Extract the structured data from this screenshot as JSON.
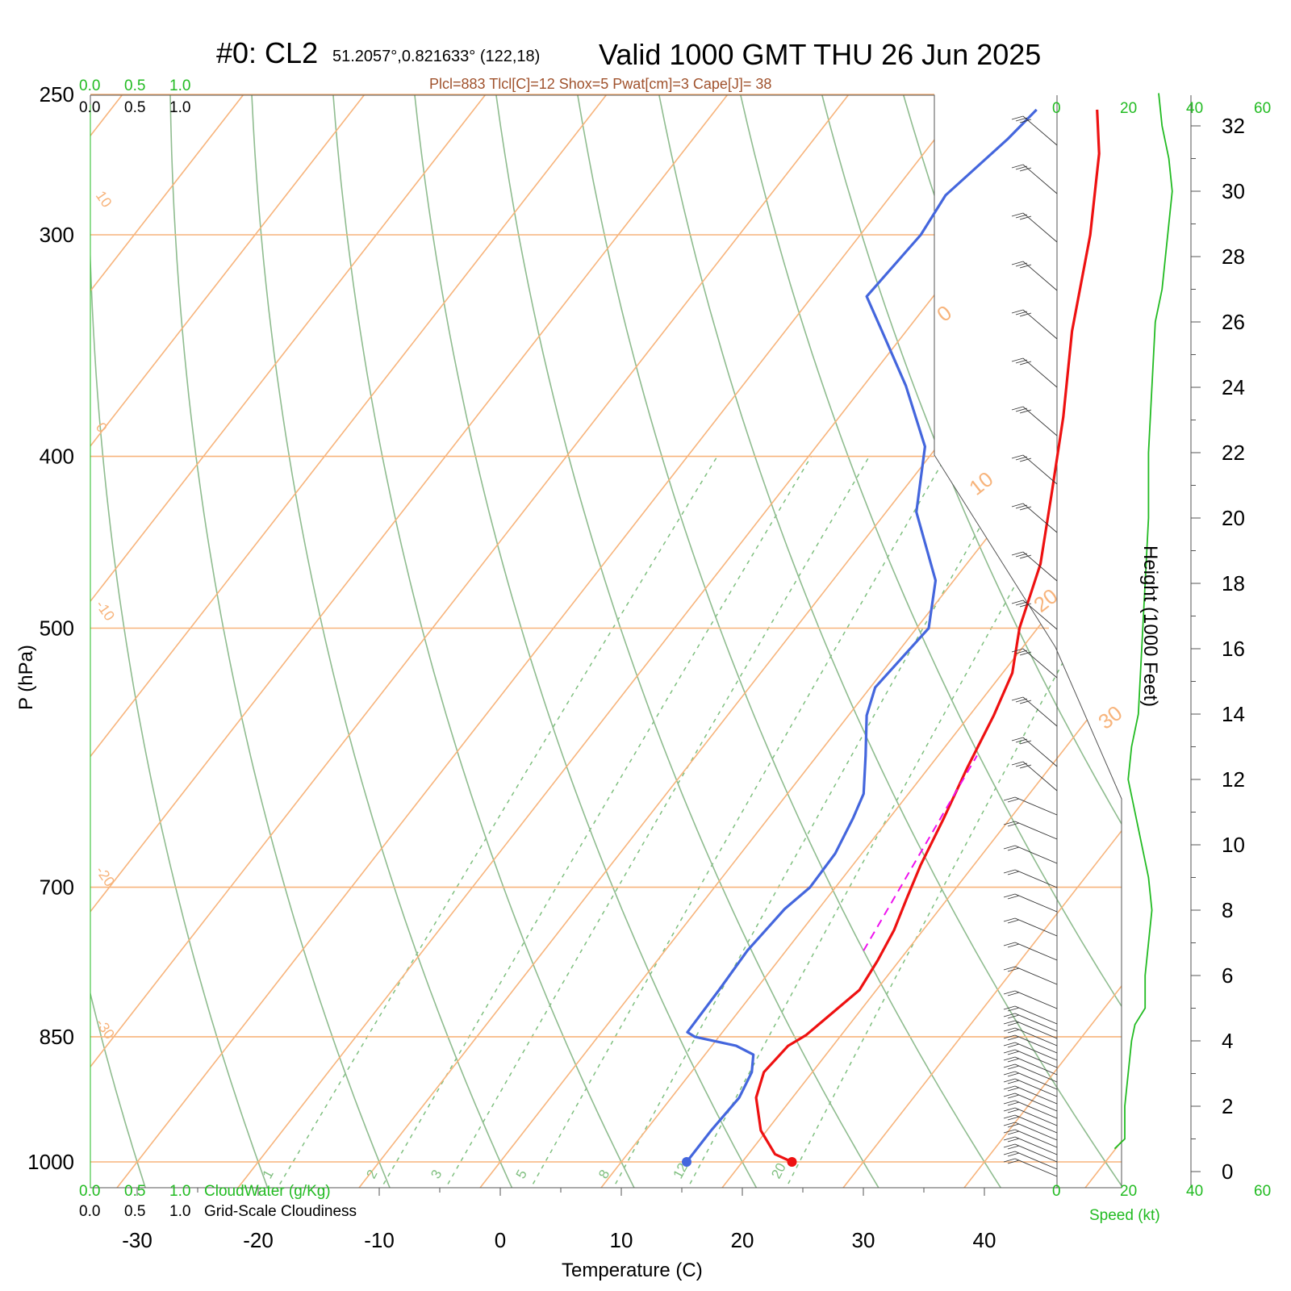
{
  "title": {
    "run_label": "#0: CL2",
    "location": "51.2057°,0.821633° (122,18)",
    "valid": "Valid 1000 GMT THU 26 Jun 2025"
  },
  "diagnostics": "Plcl=883 Tlcl[C]=12 Shox=5 Pwat[cm]=3 Cape[J]= 38",
  "axes": {
    "xlabel": "Temperature (C)",
    "ylabel": "P (hPa)",
    "height_label": "Height (1000 Feet)",
    "speed_label": "Speed (kt)",
    "cloudwater_label": "CloudWater (g/Kg)",
    "cloudiness_label": "Grid-Scale Cloudiness"
  },
  "colors": {
    "isotherm": "#f7b47c",
    "dry_adiabat": "#8fbc8f",
    "mixing_ratio": "#7fbf7f",
    "temperature": "#ee1111",
    "dewpoint": "#4466dd",
    "parcel": "#ee11ee",
    "speed": "#22bb22",
    "diagnostics": "#a0522d"
  },
  "chart_data": {
    "type": "line",
    "plot": "skew-T log-p sounding",
    "xlim": [
      -33,
      36
    ],
    "pressure_range": [
      250,
      1050
    ],
    "x_ticks": [
      "-30",
      "-20",
      "-10",
      "0",
      "10",
      "20",
      "30",
      "40"
    ],
    "pressure_ticks": [
      "250",
      "300",
      "400",
      "500",
      "700",
      "850",
      "1000"
    ],
    "height_ticks": [
      "0",
      "2",
      "4",
      "6",
      "8",
      "10",
      "12",
      "14",
      "16",
      "18",
      "20",
      "22",
      "24",
      "26",
      "28",
      "30",
      "32"
    ],
    "speed_ticks": [
      "0",
      "20",
      "40",
      "60"
    ],
    "cloud_ticks": [
      "0.0",
      "0.5",
      "1.0"
    ],
    "mixing_ratio_labels": [
      "1",
      "2",
      "3",
      "5",
      "8",
      "12",
      "20"
    ],
    "isotherm_labels": [
      "10",
      "0",
      "-10",
      "-20",
      "-30",
      "0",
      "10",
      "20",
      "30"
    ],
    "series": [
      {
        "name": "Temperature",
        "points": [
          [
            24.1,
            1000
          ],
          [
            22.2,
            990
          ],
          [
            19.5,
            960
          ],
          [
            17.0,
            920
          ],
          [
            16.0,
            890
          ],
          [
            16.3,
            860
          ],
          [
            17.1,
            848
          ],
          [
            18.6,
            800
          ],
          [
            18.2,
            770
          ],
          [
            17.6,
            740
          ],
          [
            16.6,
            710
          ],
          [
            15.6,
            680
          ],
          [
            14.5,
            640
          ],
          [
            13.2,
            600
          ],
          [
            12.0,
            560
          ],
          [
            10.8,
            530
          ],
          [
            8.5,
            500
          ],
          [
            6.1,
            460
          ],
          [
            2.5,
            420
          ],
          [
            -1.5,
            380
          ],
          [
            -6.3,
            340
          ],
          [
            -11.0,
            300
          ],
          [
            -15.5,
            270
          ],
          [
            -18.5,
            255
          ]
        ]
      },
      {
        "name": "Dewpoint",
        "points": [
          [
            15.4,
            1000
          ],
          [
            15.4,
            960
          ],
          [
            15.6,
            920
          ],
          [
            15.0,
            890
          ],
          [
            14.0,
            870
          ],
          [
            12.0,
            860
          ],
          [
            8.0,
            850
          ],
          [
            7.1,
            845
          ],
          [
            7.0,
            800
          ],
          [
            6.8,
            760
          ],
          [
            7.2,
            720
          ],
          [
            7.9,
            700
          ],
          [
            7.8,
            670
          ],
          [
            7.0,
            640
          ],
          [
            6.3,
            620
          ],
          [
            4.0,
            590
          ],
          [
            1.5,
            560
          ],
          [
            0.4,
            540
          ],
          [
            1.0,
            500
          ],
          [
            -1.5,
            470
          ],
          [
            -7.5,
            430
          ],
          [
            -11.0,
            395
          ],
          [
            -16.5,
            365
          ],
          [
            -22.0,
            340
          ],
          [
            -25.5,
            325
          ],
          [
            -25.0,
            300
          ],
          [
            -25.5,
            285
          ],
          [
            -24.0,
            265
          ],
          [
            -23.5,
            255
          ]
        ]
      },
      {
        "name": "Parcel",
        "points": [
          [
            16.4,
            760
          ],
          [
            13.2,
            590
          ]
        ]
      }
    ],
    "wind_speed_kt": [
      [
        0.7,
        17
      ],
      [
        1.0,
        20
      ],
      [
        2.0,
        20
      ],
      [
        3.0,
        21
      ],
      [
        4.0,
        22
      ],
      [
        4.5,
        23
      ],
      [
        5.0,
        26
      ],
      [
        6.0,
        26
      ],
      [
        7.0,
        27
      ],
      [
        8.0,
        28
      ],
      [
        9.0,
        27
      ],
      [
        10.0,
        25
      ],
      [
        11.0,
        23
      ],
      [
        12.0,
        21
      ],
      [
        13.0,
        22
      ],
      [
        14.0,
        24
      ],
      [
        16.0,
        25
      ],
      [
        18.0,
        26
      ],
      [
        20.0,
        27
      ],
      [
        22.0,
        27
      ],
      [
        24.0,
        28
      ],
      [
        26.0,
        29
      ],
      [
        27.0,
        31
      ],
      [
        28.0,
        32
      ],
      [
        29.0,
        33
      ],
      [
        30.0,
        34
      ],
      [
        31.0,
        33
      ],
      [
        32.0,
        31
      ],
      [
        33.0,
        30
      ]
    ]
  }
}
